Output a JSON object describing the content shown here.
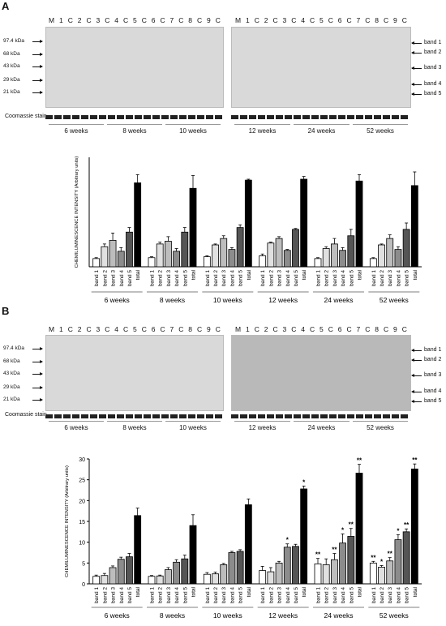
{
  "panels": [
    {
      "letter": "A",
      "lanes_left": [
        "M",
        "1",
        "C",
        "2",
        "C",
        "3",
        "C",
        "4",
        "C",
        "5",
        "C",
        "6",
        "C",
        "7"
      ],
      "lanes_right": [
        "M",
        "1",
        "C",
        "2",
        "C",
        "3",
        "C",
        "4",
        "C",
        "5",
        "C",
        "6",
        "C",
        "7",
        "C",
        "8",
        "C",
        "9",
        "C"
      ],
      "lanes_left_tail": [
        "C",
        "8",
        "C",
        "9",
        "C"
      ],
      "mw_markers": [
        "97.4 kDa",
        "68 kDa",
        "43 kDa",
        "29 kDa",
        "21 kDa"
      ],
      "band_labels": [
        "band 1",
        "band 2",
        "band 3",
        "band 4",
        "band 5"
      ],
      "coomassie": "Coomassie stain",
      "weeks_left": [
        "6 weeks",
        "8 weeks",
        "10 weeks"
      ],
      "weeks_right": [
        "12 weeks",
        "24 weeks",
        "52 weeks"
      ]
    },
    {
      "letter": "B",
      "lanes_left": [
        "M",
        "1",
        "C",
        "2",
        "C",
        "3",
        "C",
        "4",
        "C",
        "5",
        "C",
        "6",
        "C",
        "7",
        "C",
        "8",
        "C",
        "9",
        "C"
      ],
      "lanes_right": [
        "M",
        "1",
        "C",
        "2",
        "C",
        "3",
        "C",
        "4",
        "C",
        "5",
        "C",
        "6",
        "C",
        "7",
        "C",
        "8",
        "C",
        "9",
        "C"
      ],
      "mw_markers": [
        "97.4 kDa",
        "68 kDa",
        "43 kDa",
        "29 kDa",
        "21 kDa"
      ],
      "band_labels": [
        "band 1",
        "band 2",
        "band 3",
        "band 4",
        "band 5"
      ],
      "coomassie": "Coomassie stain",
      "weeks_left": [
        "6 weeks",
        "8 weeks",
        "10 weeks"
      ],
      "weeks_right": [
        "12 weeks",
        "24 weeks",
        "52 weeks"
      ]
    }
  ],
  "chart_data": [
    {
      "type": "bar",
      "ylabel": "CHEMILUMINESCENCE INTENSITY (Arbitrary units)",
      "categories": [
        "band 1",
        "band 2",
        "band 3",
        "band 4",
        "band 5",
        "total"
      ],
      "groups": [
        "6 weeks",
        "8 weeks",
        "10 weeks",
        "12 weeks",
        "24 weeks",
        "52 weeks"
      ],
      "ylim": [
        0,
        12
      ],
      "yticks": [],
      "colors": [
        "#ffffff",
        "#e0e0e0",
        "#bdbdbd",
        "#8c8c8c",
        "#555555",
        "#000000"
      ],
      "series": [
        {
          "group": "6 weeks",
          "values": [
            0.9,
            2.2,
            2.9,
            1.7,
            3.8,
            9.2
          ],
          "errors": [
            0.1,
            0.3,
            0.8,
            0.4,
            0.5,
            0.9
          ]
        },
        {
          "group": "8 weeks",
          "values": [
            1.0,
            2.5,
            2.8,
            1.7,
            3.8,
            8.6
          ],
          "errors": [
            0.1,
            0.2,
            0.5,
            0.3,
            0.5,
            1.4
          ]
        },
        {
          "group": "10 weeks",
          "values": [
            1.1,
            2.4,
            3.1,
            1.9,
            4.3,
            9.5
          ],
          "errors": [
            0.1,
            0.1,
            0.3,
            0.2,
            0.3,
            0.1
          ]
        },
        {
          "group": "12 weeks",
          "values": [
            1.2,
            2.6,
            3.1,
            1.8,
            4.1,
            9.6
          ],
          "errors": [
            0.2,
            0.1,
            0.2,
            0.1,
            0.1,
            0.3
          ]
        },
        {
          "group": "24 weeks",
          "values": [
            0.9,
            2.0,
            2.5,
            1.8,
            3.4,
            9.4
          ],
          "errors": [
            0.1,
            0.2,
            0.6,
            0.3,
            0.7,
            0.7
          ]
        },
        {
          "group": "52 weeks",
          "values": [
            0.9,
            2.4,
            3.1,
            1.9,
            4.1,
            8.9
          ],
          "errors": [
            0.1,
            0.1,
            0.4,
            0.3,
            0.7,
            1.5
          ]
        }
      ]
    },
    {
      "type": "bar",
      "ylabel": "CHEMILUMINESCENCE INTENSITY (Arbitrary units)",
      "categories": [
        "band 1",
        "band 2",
        "band 3",
        "band 4",
        "band 5",
        "total"
      ],
      "groups": [
        "6 weeks",
        "8 weeks",
        "10 weeks",
        "12 weeks",
        "24 weeks",
        "52 weeks"
      ],
      "ylim": [
        0,
        30
      ],
      "yticks": [
        0,
        5,
        10,
        15,
        20,
        25,
        30
      ],
      "colors": [
        "#ffffff",
        "#e0e0e0",
        "#bdbdbd",
        "#8c8c8c",
        "#555555",
        "#000000"
      ],
      "series": [
        {
          "group": "6 weeks",
          "values": [
            1.8,
            2.0,
            3.9,
            5.9,
            6.5,
            16.4
          ],
          "errors": [
            0.3,
            0.5,
            0.4,
            0.5,
            0.8,
            1.8
          ],
          "sig": [
            "",
            "",
            "",
            "",
            "",
            ""
          ]
        },
        {
          "group": "8 weeks",
          "values": [
            1.8,
            1.9,
            3.4,
            5.2,
            6.0,
            14.0
          ],
          "errors": [
            0.2,
            0.2,
            0.5,
            0.6,
            0.9,
            2.6
          ],
          "sig": [
            "",
            "",
            "",
            "",
            "",
            ""
          ]
        },
        {
          "group": "10 weeks",
          "values": [
            2.3,
            2.4,
            4.6,
            7.5,
            7.8,
            19.0
          ],
          "errors": [
            0.4,
            0.4,
            0.3,
            0.3,
            0.4,
            1.4
          ],
          "sig": [
            "",
            "",
            "",
            "",
            "",
            ""
          ]
        },
        {
          "group": "12 weeks",
          "values": [
            3.2,
            2.9,
            5.0,
            8.8,
            9.0,
            22.8
          ],
          "errors": [
            1.0,
            1.0,
            0.4,
            0.8,
            0.5,
            0.7
          ],
          "sig": [
            "",
            "",
            "",
            "*",
            "",
            "*"
          ]
        },
        {
          "group": "24 weeks",
          "values": [
            4.8,
            4.6,
            5.8,
            9.8,
            11.4,
            26.6
          ],
          "errors": [
            1.3,
            1.4,
            1.5,
            2.2,
            1.9,
            2.1
          ],
          "sig": [
            "**",
            "",
            "**",
            "*",
            "**",
            "**"
          ]
        },
        {
          "group": "52 weeks",
          "values": [
            5.0,
            4.0,
            5.5,
            10.6,
            12.5,
            27.6
          ],
          "errors": [
            0.4,
            0.4,
            0.8,
            1.2,
            0.7,
            1.2
          ],
          "sig": [
            "**",
            "*",
            "**",
            "*",
            "**",
            "**"
          ]
        }
      ]
    }
  ]
}
